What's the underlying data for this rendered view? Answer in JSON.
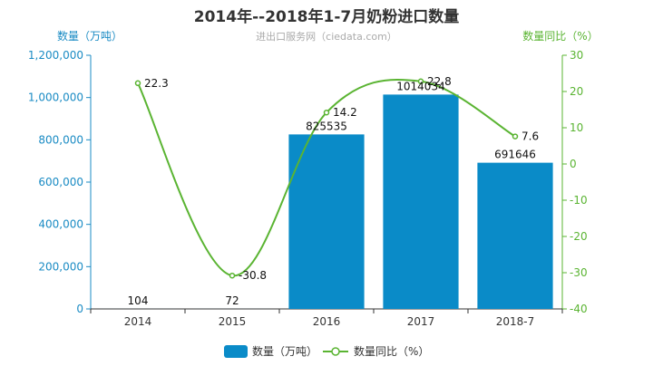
{
  "title": "2014年--2018年1-7月奶粉进口数量",
  "subtitle": "进出口服务网（ciedata.com）",
  "colors": {
    "bar": "#0a8bc8",
    "line": "#5ab432",
    "left_axis": "#1a8bc4",
    "right_axis": "#5ab432"
  },
  "chart_data": {
    "type": "bar",
    "categories": [
      "2014",
      "2015",
      "2016",
      "2017",
      "2018-7"
    ],
    "series": [
      {
        "name": "数量（万吨）",
        "type": "bar",
        "axis": "left",
        "values": [
          104,
          72,
          825535,
          1014034,
          691646
        ],
        "labels": [
          "104",
          "72",
          "825535",
          "1014034",
          "691646"
        ]
      },
      {
        "name": "数量同比（%）",
        "type": "line",
        "axis": "right",
        "values": [
          22.3,
          -30.8,
          14.2,
          22.8,
          7.6
        ],
        "labels": [
          "22.3",
          "-30.8",
          "14.2",
          "22.8",
          "7.6"
        ]
      }
    ],
    "y_left": {
      "label": "数量（万吨）",
      "ylim": [
        0,
        1200000
      ],
      "ticks": [
        "0",
        "200,000",
        "400,000",
        "600,000",
        "800,000",
        "1,000,000",
        "1,200,000"
      ]
    },
    "y_right": {
      "label": "数量同比（%）",
      "ylim": [
        -40,
        30
      ],
      "ticks": [
        "-40",
        "-30",
        "-20",
        "-10",
        "0",
        "10",
        "20",
        "30"
      ]
    },
    "grid": false,
    "legend": "bottom-center"
  }
}
